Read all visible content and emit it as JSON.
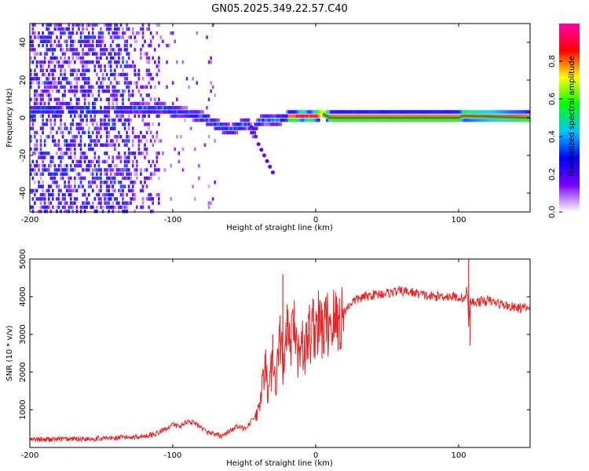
{
  "title": "GN05.2025.349.22.57.C40",
  "chart_data": [
    {
      "type": "heatmap",
      "panel": "top",
      "xlabel": "Height of straight line (km)",
      "ylabel": "Frequency (Hz)",
      "xlim": [
        -200,
        150
      ],
      "ylim": [
        -50,
        50
      ],
      "xticks": [
        -200,
        -100,
        0,
        100
      ],
      "xtick_labels": [
        "-200",
        "-100",
        "0",
        "100"
      ],
      "yticks": [
        -40,
        -20,
        0,
        20,
        40
      ],
      "ytick_labels": [
        "-40",
        "-20",
        "0",
        "20",
        "40"
      ],
      "colorbar": {
        "label": "Normalized spectral amplitude",
        "range": [
          0,
          1
        ],
        "ticks": [
          0,
          0.2,
          0.4,
          0.6,
          0.8
        ],
        "tick_labels": [
          "0.0",
          "0.2",
          "0.4",
          "0.6",
          "0.8"
        ],
        "colors": [
          "#ffffff",
          "#7a00ff",
          "#0000ff",
          "#00c8ff",
          "#00ff00",
          "#ffff00",
          "#ff0000",
          "#ff00b0"
        ]
      },
      "ridge_trace": {
        "x": [
          -125,
          -115,
          -110,
          -100,
          -90,
          -80,
          -70,
          -60,
          -55,
          -48,
          -45,
          -40,
          -35,
          -30,
          -25,
          -20,
          -15,
          -10,
          -5,
          0,
          5,
          10,
          50,
          100,
          103,
          150
        ],
        "y": [
          5,
          4,
          5,
          3,
          2,
          0,
          -4,
          -7,
          -5,
          -3,
          -8,
          -2,
          -1,
          -2,
          -1,
          0,
          0,
          1,
          0,
          1,
          2,
          0,
          0,
          0,
          1,
          0
        ]
      },
      "ridge_branch": {
        "x": [
          -45,
          -42,
          -40,
          -38,
          -36,
          -34,
          -32,
          -30
        ],
        "y": [
          -5,
          -10,
          -14,
          -17,
          -20,
          -23,
          -26,
          -29
        ]
      }
    },
    {
      "type": "line",
      "panel": "bottom",
      "xlabel": "Height of straight line (km)",
      "ylabel": "SNR (10 * v/v)",
      "xlim": [
        -200,
        150
      ],
      "ylim": [
        0,
        5000
      ],
      "xticks": [
        -200,
        -100,
        0,
        100
      ],
      "xtick_labels": [
        "-200",
        "-100",
        "0",
        "100"
      ],
      "yticks": [
        1000,
        2000,
        3000,
        4000,
        5000
      ],
      "ytick_labels": [
        "1000",
        "2000",
        "3000",
        "4000",
        "5000"
      ],
      "series": [
        {
          "name": "SNR",
          "color": "#ee2222",
          "x": [
            -200,
            -180,
            -160,
            -140,
            -120,
            -110,
            -105,
            -100,
            -95,
            -90,
            -85,
            -80,
            -75,
            -70,
            -65,
            -60,
            -55,
            -50,
            -45,
            -40,
            -38,
            -35,
            -33,
            -30,
            -28,
            -25,
            -22,
            -20,
            -18,
            -15,
            -12,
            -10,
            -8,
            -5,
            0,
            5,
            10,
            15,
            20,
            25,
            30,
            40,
            50,
            60,
            70,
            80,
            90,
            100,
            105,
            106,
            107,
            108,
            110,
            120,
            130,
            140,
            150
          ],
          "y": [
            200,
            220,
            230,
            250,
            300,
            380,
            500,
            600,
            550,
            700,
            650,
            500,
            400,
            350,
            300,
            450,
            550,
            500,
            700,
            900,
            1500,
            2000,
            1400,
            2400,
            1800,
            2800,
            2000,
            3200,
            2600,
            3000,
            2300,
            3200,
            2400,
            3000,
            3300,
            3100,
            3400,
            3300,
            3600,
            3850,
            3950,
            4050,
            4100,
            4150,
            4100,
            4000,
            4020,
            3980,
            3950,
            4300,
            3200,
            3900,
            3850,
            3900,
            3800,
            3700,
            3700
          ]
        }
      ],
      "spikes": {
        "x": [
          -35,
          -30,
          -25,
          -23,
          -20,
          -15,
          -5,
          107,
          108
        ],
        "y": [
          2600,
          3000,
          3500,
          4600,
          3800,
          3900,
          2700,
          5000,
          2700
        ]
      }
    }
  ]
}
